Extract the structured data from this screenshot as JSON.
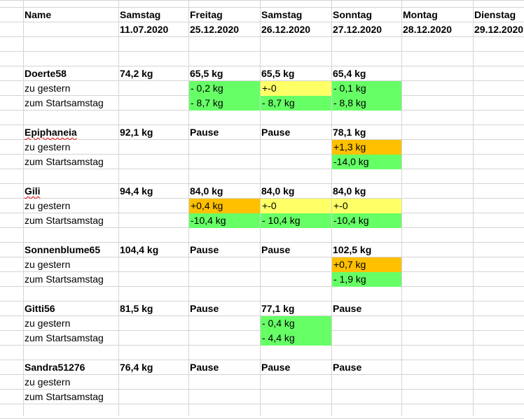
{
  "colors": {
    "green": "#66ff66",
    "yellow": "#ffff66",
    "orange": "#ffc000",
    "grid": "#d4d4d4"
  },
  "header": {
    "name_label": "Name",
    "days": [
      {
        "weekday": "Samstag",
        "date": "11.07.2020"
      },
      {
        "weekday": "Freitag",
        "date": "25.12.2020"
      },
      {
        "weekday": "Samstag",
        "date": "26.12.2020"
      },
      {
        "weekday": "Sonntag",
        "date": "27.12.2020"
      },
      {
        "weekday": "Montag",
        "date": "28.12.2020"
      },
      {
        "weekday": "Dienstag",
        "date": "29.12.2020"
      }
    ]
  },
  "participants": [
    {
      "name": "Doerte58",
      "weights": [
        "74,2 kg",
        "65,5 kg",
        "65,5 kg",
        "65,4 kg",
        "",
        ""
      ],
      "zu_gestern_label": "zu gestern",
      "zu_gestern": [
        "",
        "- 0,2 kg",
        "+-0",
        "- 0,1 kg",
        "",
        ""
      ],
      "zu_gestern_colors": [
        "",
        "green",
        "yellow",
        "green",
        "",
        ""
      ],
      "start_label": "zum Startsamstag",
      "start": [
        "",
        "- 8,7 kg",
        "- 8,7 kg",
        "- 8,8 kg",
        "",
        ""
      ],
      "start_colors": [
        "",
        "green",
        "green",
        "green",
        "",
        ""
      ]
    },
    {
      "name": "Epiphaneia",
      "weights": [
        "92,1 kg",
        "Pause",
        "Pause",
        "78,1 kg",
        "",
        ""
      ],
      "zu_gestern_label": "zu gestern",
      "zu_gestern": [
        "",
        "",
        "",
        "+1,3 kg",
        "",
        ""
      ],
      "zu_gestern_colors": [
        "",
        "",
        "",
        "orange",
        "",
        ""
      ],
      "start_label": "zum Startsamstag",
      "start": [
        "",
        "",
        "",
        "-14,0 kg",
        "",
        ""
      ],
      "start_colors": [
        "",
        "",
        "",
        "green",
        "",
        ""
      ]
    },
    {
      "name": "Gili",
      "weights": [
        "94,4 kg",
        "84,0 kg",
        "84,0 kg",
        "84,0 kg",
        "",
        ""
      ],
      "zu_gestern_label": "zu gestern",
      "zu_gestern": [
        "",
        "+0,4 kg",
        "+-0",
        "+-0",
        "",
        ""
      ],
      "zu_gestern_colors": [
        "",
        "orange",
        "yellow",
        "yellow",
        "",
        ""
      ],
      "start_label": "zum Startsamstag",
      "start": [
        "",
        "-10,4 kg",
        "- 10,4 kg",
        "-10,4 kg",
        "",
        ""
      ],
      "start_colors": [
        "",
        "green",
        "green",
        "green",
        "",
        ""
      ]
    },
    {
      "name": "Sonnenblume65",
      "weights": [
        "104,4 kg",
        "Pause",
        "Pause",
        "102,5 kg",
        "",
        ""
      ],
      "zu_gestern_label": "zu gestern",
      "zu_gestern": [
        "",
        "",
        "",
        "+0,7 kg",
        "",
        ""
      ],
      "zu_gestern_colors": [
        "",
        "",
        "",
        "orange",
        "",
        ""
      ],
      "start_label": "zum Startsamstag",
      "start": [
        "",
        "",
        "",
        "- 1,9 kg",
        "",
        ""
      ],
      "start_colors": [
        "",
        "",
        "",
        "green",
        "",
        ""
      ]
    },
    {
      "name": "Gitti56",
      "weights": [
        "81,5 kg",
        "Pause",
        "77,1 kg",
        "Pause",
        "",
        ""
      ],
      "zu_gestern_label": "zu gestern",
      "zu_gestern": [
        "",
        "",
        "- 0,4 kg",
        "",
        "",
        ""
      ],
      "zu_gestern_colors": [
        "",
        "",
        "green",
        "",
        "",
        ""
      ],
      "start_label": "zum Startsamstag",
      "start": [
        "",
        "",
        "- 4,4 kg",
        "",
        "",
        ""
      ],
      "start_colors": [
        "",
        "",
        "green",
        "",
        "",
        ""
      ]
    },
    {
      "name": "Sandra51276",
      "weights": [
        "76,4 kg",
        "Pause",
        "Pause",
        "Pause",
        "",
        ""
      ],
      "zu_gestern_label": "zu gestern",
      "zu_gestern": [
        "",
        "",
        "",
        "",
        "",
        ""
      ],
      "zu_gestern_colors": [
        "",
        "",
        "",
        "",
        "",
        ""
      ],
      "start_label": "zum Startsamstag",
      "start": [
        "",
        "",
        "",
        "",
        "",
        ""
      ],
      "start_colors": [
        "",
        "",
        "",
        "",
        "",
        ""
      ]
    }
  ]
}
